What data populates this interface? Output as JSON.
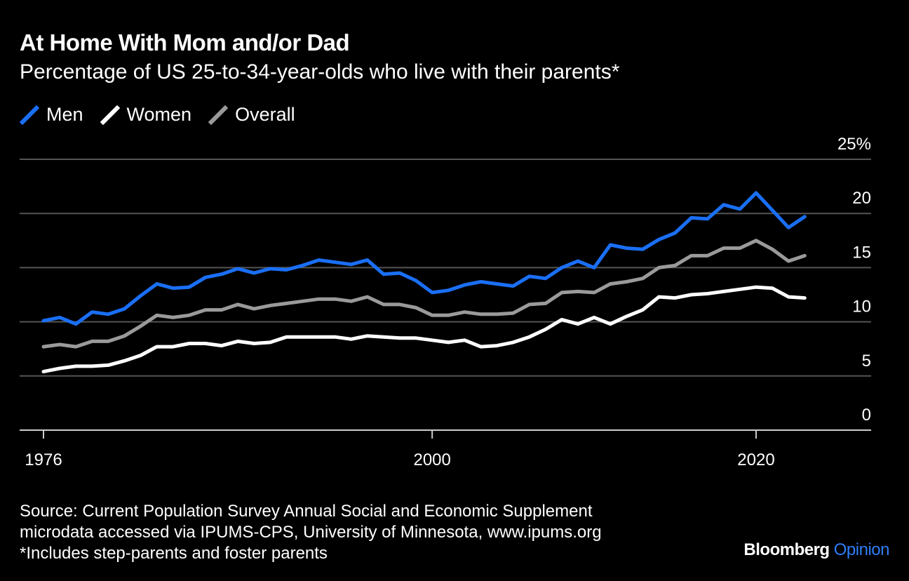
{
  "title": "At Home With Mom and/or Dad",
  "subtitle": "Percentage of US 25-to-34-year-olds who live with their parents*",
  "source_lines": [
    "Source: Current Population Survey Annual Social and Economic Supplement",
    "microdata accessed via IPUMS-CPS, University of Minnesota, www.ipums.org",
    "*Includes step-parents and foster parents"
  ],
  "brand": {
    "part1": "Bloomberg",
    "part2": "Opinion"
  },
  "colors": {
    "men": "#1a6ff5",
    "women": "#ffffff",
    "overall": "#9a9a9a",
    "grid": "#555555",
    "background": "#000000"
  },
  "chart_data": {
    "type": "line",
    "title": "At Home With Mom and/or Dad",
    "subtitle": "Percentage of US 25-to-34-year-olds who live with their parents*",
    "xlim": [
      1976,
      2025
    ],
    "ylim": [
      0,
      25
    ],
    "x_ticks": [
      1976,
      2000,
      2020
    ],
    "x_tick_labels": [
      "1976",
      "2000",
      "2020"
    ],
    "y_ticks": [
      0,
      5,
      10,
      15,
      20,
      25
    ],
    "y_tick_labels": [
      "0",
      "5",
      "10",
      "15",
      "20",
      "25%"
    ],
    "grid": "horizontal",
    "legend_position": "top-left",
    "x": [
      1976,
      1977,
      1978,
      1979,
      1980,
      1981,
      1982,
      1983,
      1984,
      1985,
      1986,
      1987,
      1988,
      1989,
      1990,
      1991,
      1992,
      1993,
      1994,
      1995,
      1996,
      1997,
      1998,
      1999,
      2000,
      2001,
      2002,
      2003,
      2004,
      2005,
      2006,
      2007,
      2008,
      2009,
      2010,
      2011,
      2012,
      2013,
      2014,
      2015,
      2016,
      2017,
      2018,
      2019,
      2020,
      2021,
      2022,
      2023
    ],
    "series": [
      {
        "name": "Men",
        "color": "#1a6ff5",
        "values": [
          10.1,
          10.4,
          9.8,
          10.9,
          10.7,
          11.2,
          12.4,
          13.5,
          13.1,
          13.2,
          14.1,
          14.4,
          14.9,
          14.5,
          14.9,
          14.8,
          15.2,
          15.7,
          15.5,
          15.3,
          15.7,
          14.4,
          14.5,
          13.8,
          12.7,
          12.9,
          13.4,
          13.7,
          13.5,
          13.3,
          14.2,
          14.0,
          15.0,
          15.6,
          15.0,
          17.1,
          16.8,
          16.7,
          17.6,
          18.2,
          19.6,
          19.5,
          20.8,
          20.4,
          21.9,
          20.3,
          18.7,
          19.7
        ]
      },
      {
        "name": "Women",
        "color": "#ffffff",
        "values": [
          5.4,
          5.7,
          5.9,
          5.9,
          6.0,
          6.4,
          6.9,
          7.7,
          7.7,
          8.0,
          8.0,
          7.8,
          8.2,
          8.0,
          8.1,
          8.6,
          8.6,
          8.6,
          8.6,
          8.4,
          8.7,
          8.6,
          8.5,
          8.5,
          8.3,
          8.1,
          8.3,
          7.7,
          7.8,
          8.1,
          8.6,
          9.3,
          10.2,
          9.8,
          10.4,
          9.8,
          10.5,
          11.1,
          12.3,
          12.2,
          12.5,
          12.6,
          12.8,
          13.0,
          13.2,
          13.1,
          12.3,
          12.2
        ]
      },
      {
        "name": "Overall",
        "color": "#9a9a9a",
        "values": [
          7.7,
          7.9,
          7.7,
          8.2,
          8.2,
          8.7,
          9.6,
          10.6,
          10.4,
          10.6,
          11.1,
          11.1,
          11.6,
          11.2,
          11.5,
          11.7,
          11.9,
          12.1,
          12.1,
          11.9,
          12.3,
          11.6,
          11.6,
          11.3,
          10.6,
          10.6,
          10.9,
          10.7,
          10.7,
          10.8,
          11.6,
          11.7,
          12.7,
          12.8,
          12.7,
          13.5,
          13.7,
          14.0,
          15.0,
          15.2,
          16.1,
          16.1,
          16.8,
          16.8,
          17.5,
          16.7,
          15.6,
          16.1
        ]
      }
    ]
  }
}
